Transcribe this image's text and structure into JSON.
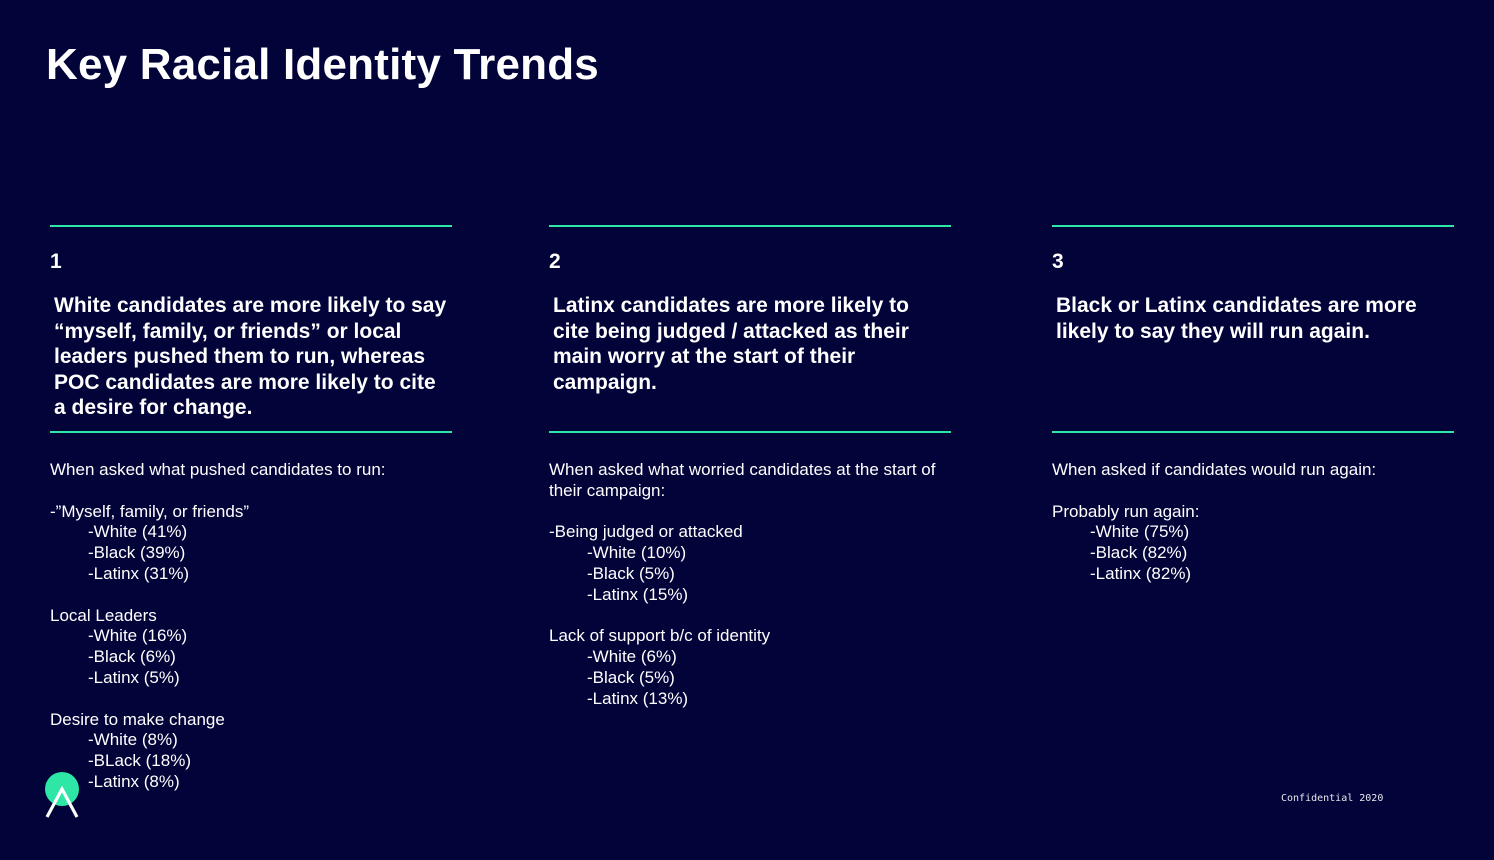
{
  "title": "Key Racial Identity Trends",
  "footer": "Confidential 2020",
  "colors": {
    "background": "#020338",
    "accent": "#2ee6a6",
    "text": "#ffffff"
  },
  "columns": [
    {
      "number": "1",
      "headline": "White candidates are more likely to say “myself, family, or friends” or local leaders pushed them to run, whereas POC candidates are more likely to cite a desire for change.",
      "intro": "When asked what pushed candidates to run:",
      "groups": [
        {
          "label": "-”Myself, family, or friends”",
          "items": [
            "-White (41%)",
            "-Black (39%)",
            "-Latinx (31%)"
          ]
        },
        {
          "label": "Local Leaders",
          "items": [
            "-White (16%)",
            "-Black (6%)",
            "-Latinx (5%)"
          ]
        },
        {
          "label": "Desire to make change",
          "items": [
            "-White (8%)",
            "-BLack (18%)",
            "-Latinx (8%)"
          ]
        }
      ]
    },
    {
      "number": "2",
      "headline": "Latinx candidates are more likely to cite being judged / attacked as their main worry at the start of their campaign.",
      "intro": "When asked what worried candidates at the start of their campaign:",
      "groups": [
        {
          "label": "-Being judged or attacked",
          "items": [
            "-White (10%)",
            "-Black (5%)",
            "-Latinx (15%)"
          ]
        },
        {
          "label": "Lack of support b/c of identity",
          "items": [
            "-White (6%)",
            "-Black (5%)",
            "-Latinx (13%)"
          ]
        }
      ]
    },
    {
      "number": "3",
      "headline": "Black or Latinx candidates are more likely to say they will run again.",
      "intro": "When asked if candidates would run again:",
      "groups": [
        {
          "label": "Probably run again:",
          "items": [
            "-White (75%)",
            "-Black (82%)",
            "-Latinx (82%)"
          ]
        }
      ]
    }
  ]
}
